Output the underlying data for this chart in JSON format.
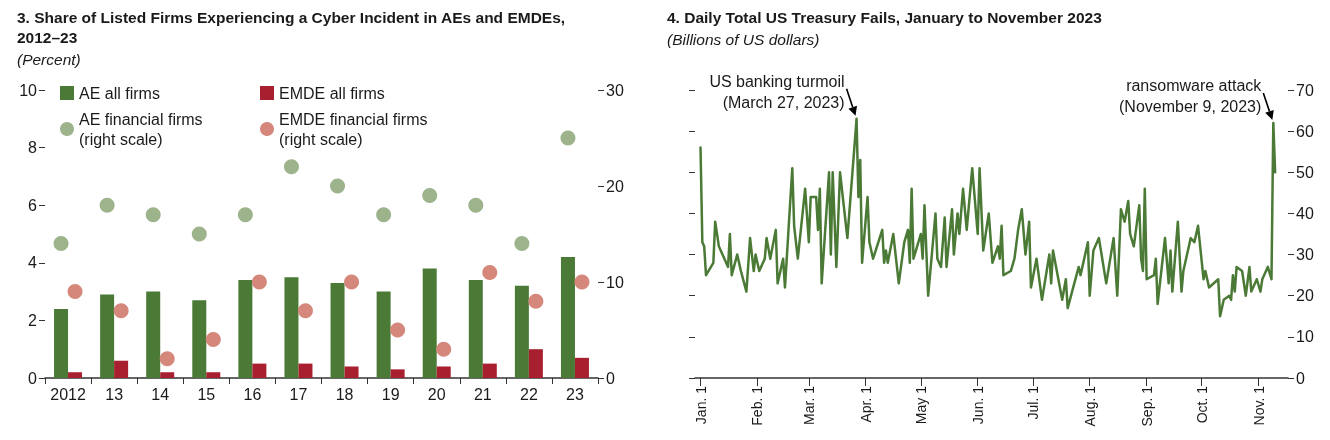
{
  "chart_data": [
    {
      "type": "bar",
      "title": "3. Share of Listed Firms Experiencing a Cyber Incident in AEs and EMDEs, 2012–23",
      "subtitle": "(Percent)",
      "categories": [
        "2012",
        "13",
        "14",
        "15",
        "16",
        "17",
        "18",
        "19",
        "20",
        "21",
        "22",
        "23"
      ],
      "series": [
        {
          "name": "AE all firms",
          "color": "#4a7a35",
          "values": [
            2.4,
            2.9,
            3.0,
            2.7,
            3.4,
            3.5,
            3.3,
            3.0,
            3.8,
            3.4,
            3.2,
            4.2
          ]
        },
        {
          "name": "EMDE all firms",
          "color": "#a81f2f",
          "values": [
            0.2,
            0.6,
            0.2,
            0.2,
            0.5,
            0.5,
            0.4,
            0.3,
            0.4,
            0.5,
            1.0,
            0.7
          ]
        },
        {
          "name": "AE financial firms (right scale)",
          "type": "scatter",
          "axis": "y2",
          "color": "#9db38c",
          "values": [
            14,
            18,
            17,
            15,
            17,
            22,
            20,
            17,
            19,
            18,
            14,
            25
          ]
        },
        {
          "name": "EMDE financial firms (right scale)",
          "type": "scatter",
          "axis": "y2",
          "color": "#d4877a",
          "values": [
            9,
            7,
            2,
            4,
            10,
            7,
            10,
            5,
            3,
            11,
            8,
            10
          ]
        }
      ],
      "ylim": [
        0,
        10
      ],
      "yticks": [
        0,
        2,
        4,
        6,
        8,
        10
      ],
      "y2lim": [
        0,
        30
      ],
      "y2ticks": [
        0,
        10,
        20,
        30
      ],
      "legend": "top left"
    },
    {
      "type": "line",
      "title": "4. Daily Total US Treasury Fails, January to November 2023",
      "subtitle": "(Billions of US dollars)",
      "series": [
        {
          "color": "#4a7a35",
          "x": [
            "2023-01-01",
            "2023-01-02",
            "2023-01-03",
            "2023-01-04",
            "2023-01-08",
            "2023-01-09",
            "2023-01-11",
            "2023-01-12",
            "2023-01-16",
            "2023-01-17",
            "2023-01-18",
            "2023-01-21",
            "2023-01-23",
            "2023-01-26",
            "2023-01-28",
            "2023-01-30",
            "2023-01-31",
            "2023-02-02",
            "2023-02-05",
            "2023-02-06",
            "2023-02-08",
            "2023-02-11",
            "2023-02-12",
            "2023-02-15",
            "2023-02-16",
            "2023-02-20",
            "2023-02-21",
            "2023-02-23",
            "2023-02-27",
            "2023-03-01",
            "2023-03-02",
            "2023-03-05",
            "2023-03-06",
            "2023-03-07",
            "2023-03-08",
            "2023-03-12",
            "2023-03-13",
            "2023-03-14",
            "2023-03-16",
            "2023-03-18",
            "2023-03-22",
            "2023-03-27",
            "2023-03-28",
            "2023-03-29",
            "2023-03-30",
            "2023-04-02",
            "2023-04-03",
            "2023-04-05",
            "2023-04-10",
            "2023-04-11",
            "2023-04-12",
            "2023-04-13",
            "2023-04-16",
            "2023-04-19",
            "2023-04-22",
            "2023-04-24",
            "2023-04-25",
            "2023-04-26",
            "2023-04-27",
            "2023-05-01",
            "2023-05-02",
            "2023-05-03",
            "2023-05-05",
            "2023-05-09",
            "2023-05-10",
            "2023-05-12",
            "2023-05-14",
            "2023-05-15",
            "2023-05-18",
            "2023-05-19",
            "2023-05-21",
            "2023-05-22",
            "2023-05-24",
            "2023-05-26",
            "2023-05-29",
            "2023-06-01",
            "2023-06-02",
            "2023-06-04",
            "2023-06-07",
            "2023-06-09",
            "2023-06-12",
            "2023-06-13",
            "2023-06-14",
            "2023-06-15",
            "2023-06-19",
            "2023-06-21",
            "2023-06-23",
            "2023-06-25",
            "2023-06-27",
            "2023-06-29",
            "2023-06-30",
            "2023-07-03",
            "2023-07-06",
            "2023-07-10",
            "2023-07-11",
            "2023-07-12",
            "2023-07-17",
            "2023-07-19",
            "2023-07-20",
            "2023-07-26",
            "2023-07-27",
            "2023-07-31",
            "2023-08-01",
            "2023-08-03",
            "2023-08-06",
            "2023-08-10",
            "2023-08-14",
            "2023-08-16",
            "2023-08-18",
            "2023-08-20",
            "2023-08-22",
            "2023-08-23",
            "2023-08-25",
            "2023-08-28",
            "2023-08-29",
            "2023-08-30",
            "2023-08-31",
            "2023-09-01",
            "2023-09-05",
            "2023-09-06",
            "2023-09-07",
            "2023-09-11",
            "2023-09-13",
            "2023-09-14",
            "2023-09-15",
            "2023-09-18",
            "2023-09-20",
            "2023-09-21",
            "2023-09-25",
            "2023-09-27",
            "2023-09-29",
            "2023-10-02",
            "2023-10-03",
            "2023-10-05",
            "2023-10-10",
            "2023-10-11",
            "2023-10-13",
            "2023-10-16",
            "2023-10-17",
            "2023-10-18",
            "2023-10-19",
            "2023-10-20",
            "2023-10-23",
            "2023-10-25",
            "2023-10-27",
            "2023-10-28",
            "2023-10-31",
            "2023-11-02",
            "2023-11-03",
            "2023-11-06",
            "2023-11-08",
            "2023-11-09",
            "2023-11-10"
          ],
          "values": [
            56,
            33,
            32,
            25,
            28,
            38,
            32,
            31,
            27,
            35,
            25,
            30,
            26,
            21,
            34,
            26,
            30,
            26,
            29,
            34,
            29,
            36,
            23,
            29,
            22,
            51,
            37,
            29,
            46,
            33,
            44,
            44,
            36,
            46,
            23,
            50,
            30,
            50,
            27,
            50,
            34,
            63,
            44,
            53,
            28,
            44,
            33,
            29,
            36,
            28,
            31,
            28,
            35,
            23,
            33,
            36,
            28,
            46,
            29,
            35,
            29,
            42,
            20,
            40,
            29,
            27,
            39,
            27,
            41,
            30,
            40,
            35,
            46,
            36,
            51,
            35,
            51,
            31,
            40,
            28,
            32,
            29,
            37,
            25,
            26,
            29,
            36,
            41,
            30,
            38,
            22,
            29,
            19,
            30,
            23,
            31,
            19,
            24,
            17,
            27,
            25,
            33,
            20,
            31,
            34,
            23,
            34,
            20,
            41,
            38,
            43,
            35,
            32,
            42,
            29,
            26,
            46,
            24,
            25,
            29,
            18,
            34,
            23,
            31,
            21,
            38,
            21,
            26,
            34,
            33,
            37,
            24,
            26,
            22,
            24,
            15,
            19,
            20,
            19,
            25,
            21,
            27,
            26,
            20,
            27,
            21,
            24,
            21,
            24,
            27,
            24,
            62,
            50
          ]
        }
      ],
      "xlim": [
        "2022-12-29",
        "2023-11-17"
      ],
      "xticks": [
        {
          "value": "2023-01-01",
          "label": "Jan. 1"
        },
        {
          "value": "2023-02-01",
          "label": "Feb. 1"
        },
        {
          "value": "2023-03-01",
          "label": "Mar. 1"
        },
        {
          "value": "2023-04-01",
          "label": "Apr. 1"
        },
        {
          "value": "2023-05-01",
          "label": "May 1"
        },
        {
          "value": "2023-06-01",
          "label": "Jun. 1"
        },
        {
          "value": "2023-07-01",
          "label": "Jul. 1"
        },
        {
          "value": "2023-08-01",
          "label": "Aug. 1"
        },
        {
          "value": "2023-09-01",
          "label": "Sep. 1"
        },
        {
          "value": "2023-10-01",
          "label": "Oct. 1"
        },
        {
          "value": "2023-11-01",
          "label": "Nov. 1"
        }
      ],
      "ylim": [
        0,
        70
      ],
      "yticks": [
        0,
        10,
        20,
        30,
        40,
        50,
        60,
        70
      ],
      "marker": "none",
      "line_style": "solid",
      "annotations": [
        {
          "text": "US banking turmoil (March 27, 2023)",
          "x": "2023-03-27",
          "y": 63
        },
        {
          "text": "ransomware attack (November 9, 2023)",
          "x": "2023-11-09",
          "y": 62
        }
      ]
    }
  ]
}
